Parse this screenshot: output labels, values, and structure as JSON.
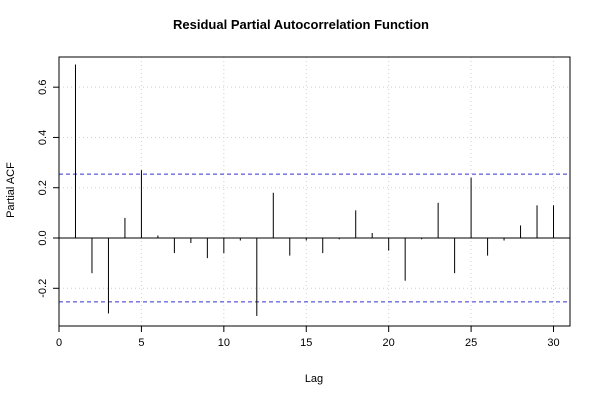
{
  "chart_data": {
    "type": "bar",
    "title": "Residual Partial Autocorrelation Function",
    "xlabel": "Lag",
    "ylabel": "Partial ACF",
    "xlim": [
      0,
      31
    ],
    "ylim": [
      -0.35,
      0.72
    ],
    "x_ticks": [
      0,
      5,
      10,
      15,
      20,
      25,
      30
    ],
    "x_tick_labels": [
      "0",
      "5",
      "10",
      "15",
      "20",
      "25",
      "30"
    ],
    "y_ticks": [
      -0.2,
      0.0,
      0.2,
      0.4,
      0.6
    ],
    "y_tick_labels": [
      "-0.2",
      "0.0",
      "0.2",
      "0.4",
      "0.6"
    ],
    "lags": [
      1,
      2,
      3,
      4,
      5,
      6,
      7,
      8,
      9,
      10,
      11,
      12,
      13,
      14,
      15,
      16,
      17,
      18,
      19,
      20,
      21,
      22,
      23,
      24,
      25,
      26,
      27,
      28,
      29,
      30
    ],
    "values": [
      0.69,
      -0.14,
      -0.3,
      0.08,
      0.27,
      0.01,
      -0.06,
      -0.02,
      -0.08,
      -0.06,
      -0.01,
      -0.31,
      0.18,
      -0.07,
      -0.01,
      -0.06,
      -0.005,
      0.11,
      0.02,
      -0.05,
      -0.17,
      -0.005,
      0.14,
      -0.14,
      0.24,
      -0.07,
      -0.01,
      0.05,
      0.13,
      0.13
    ],
    "confidence_bound": 0.254,
    "grid": true,
    "colors": {
      "bars": "#000000",
      "confidence": "#3333cc",
      "grid": "#d0d0d0",
      "zero_line": "#000000"
    }
  }
}
